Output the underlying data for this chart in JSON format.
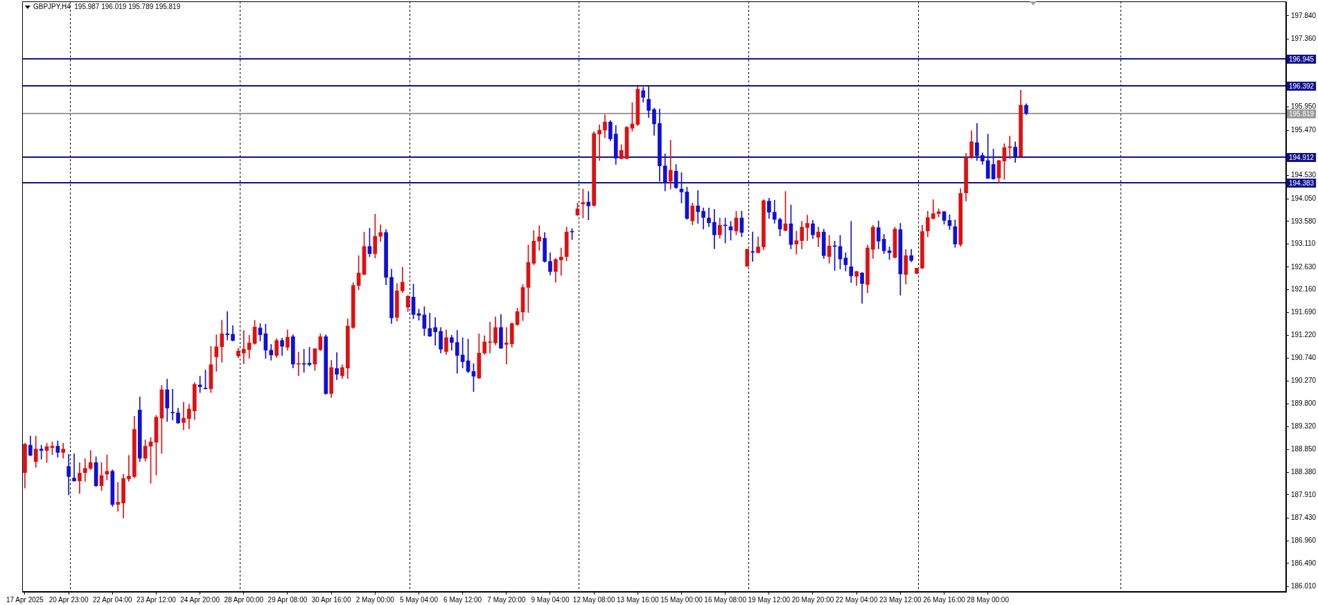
{
  "chart_data": {
    "type": "candlestick",
    "title": "GBPJPY,H4  195.987 196.019 195.789 195.819",
    "ylim": [
      185.9,
      198.14
    ],
    "yticks": [
      {
        "value": 197.84,
        "label": "197.840"
      },
      {
        "value": 197.36,
        "label": "197.360"
      },
      {
        "value": 195.95,
        "label": "195.950"
      },
      {
        "value": 195.47,
        "label": "195.470"
      },
      {
        "value": 194.53,
        "label": "194.530"
      },
      {
        "value": 194.05,
        "label": "194.050"
      },
      {
        "value": 193.58,
        "label": "193.580"
      },
      {
        "value": 193.11,
        "label": "193.110"
      },
      {
        "value": 192.63,
        "label": "192.630"
      },
      {
        "value": 192.16,
        "label": "192.160"
      },
      {
        "value": 191.69,
        "label": "191.690"
      },
      {
        "value": 191.22,
        "label": "191.220"
      },
      {
        "value": 190.74,
        "label": "190.740"
      },
      {
        "value": 190.27,
        "label": "190.270"
      },
      {
        "value": 189.8,
        "label": "189.800"
      },
      {
        "value": 189.32,
        "label": "189.320"
      },
      {
        "value": 188.85,
        "label": "188.850"
      },
      {
        "value": 188.38,
        "label": "188.380"
      },
      {
        "value": 187.91,
        "label": "187.910"
      },
      {
        "value": 187.43,
        "label": "187.430"
      },
      {
        "value": 186.96,
        "label": "186.960"
      },
      {
        "value": 186.49,
        "label": "186.490"
      },
      {
        "value": 186.01,
        "label": "186.010"
      }
    ],
    "categories": [
      "17 Apr 2025",
      null,
      null,
      null,
      null,
      null,
      null,
      null,
      "20 Apr 23:00",
      null,
      null,
      null,
      null,
      null,
      null,
      null,
      "22 Apr 04:00",
      null,
      null,
      null,
      null,
      null,
      null,
      null,
      "23 Apr 12:00",
      null,
      null,
      null,
      null,
      null,
      null,
      null,
      "24 Apr 20:00",
      null,
      null,
      null,
      null,
      null,
      null,
      null,
      "28 Apr 00:00",
      null,
      null,
      null,
      null,
      null,
      null,
      null,
      "29 Apr 08:00",
      null,
      null,
      null,
      null,
      null,
      null,
      null,
      "30 Apr 16:00",
      null,
      null,
      null,
      null,
      null,
      null,
      null,
      "2 May 00:00",
      null,
      null,
      null,
      null,
      null,
      null,
      null,
      "5 May 04:00",
      null,
      null,
      null,
      null,
      null,
      null,
      null,
      "6 May 12:00",
      null,
      null,
      null,
      null,
      null,
      null,
      null,
      "7 May 20:00",
      null,
      null,
      null,
      null,
      null,
      null,
      null,
      "9 May 04:00",
      null,
      null,
      null,
      null,
      null,
      null,
      null,
      "12 May 08:00",
      null,
      null,
      null,
      null,
      null,
      null,
      null,
      "13 May 16:00",
      null,
      null,
      null,
      null,
      null,
      null,
      null,
      "15 May 00:00",
      null,
      null,
      null,
      null,
      null,
      null,
      null,
      "16 May 08:00",
      null,
      null,
      null,
      null,
      null,
      null,
      null,
      "19 May 12:00",
      null,
      null,
      null,
      null,
      null,
      null,
      null,
      "20 May 20:00",
      null,
      null,
      null,
      null,
      null,
      null,
      null,
      "22 May 04:00",
      null,
      null,
      null,
      null,
      null,
      null,
      null,
      "23 May 12:00",
      null,
      null,
      null,
      null,
      null,
      null,
      null,
      "26 May 16:00",
      null,
      null,
      null,
      null,
      null,
      null,
      null,
      "28 May 00:00",
      null,
      null,
      null,
      null,
      null,
      null,
      null,
      null,
      null,
      null,
      null,
      null,
      null,
      null,
      null,
      null,
      null,
      null,
      null,
      null,
      null,
      null,
      null,
      null,
      null,
      null,
      null,
      null,
      null,
      null,
      null,
      null,
      null,
      null,
      null,
      null,
      null,
      null,
      null,
      null,
      null,
      null,
      null,
      null,
      null,
      null,
      null,
      null,
      null,
      null,
      null,
      null,
      null,
      null
    ],
    "ohlc": [
      [
        188.37,
        188.98,
        188.05,
        188.96
      ],
      [
        188.94,
        189.13,
        188.72,
        188.73
      ],
      [
        188.6,
        189.13,
        188.48,
        188.86
      ],
      [
        188.86,
        188.94,
        188.65,
        188.83
      ],
      [
        188.83,
        188.98,
        188.58,
        188.91
      ],
      [
        188.89,
        189.01,
        188.74,
        188.92
      ],
      [
        188.92,
        189.03,
        188.69,
        188.79
      ],
      [
        188.79,
        188.98,
        188.67,
        188.86
      ],
      [
        188.5,
        188.75,
        187.91,
        188.29
      ],
      [
        188.26,
        188.76,
        188.19,
        188.2
      ],
      [
        188.2,
        188.58,
        187.94,
        188.36
      ],
      [
        188.37,
        188.66,
        188.19,
        188.46
      ],
      [
        188.46,
        188.83,
        188.43,
        188.58
      ],
      [
        188.58,
        188.7,
        188.08,
        188.1
      ],
      [
        188.1,
        188.58,
        188.0,
        188.31
      ],
      [
        188.34,
        188.74,
        188.22,
        188.4
      ],
      [
        188.4,
        188.43,
        187.67,
        187.71
      ],
      [
        187.71,
        188.17,
        187.57,
        187.76
      ],
      [
        187.74,
        188.34,
        187.43,
        188.25
      ],
      [
        188.24,
        188.73,
        188.19,
        188.3
      ],
      [
        188.29,
        189.54,
        188.26,
        189.27
      ],
      [
        189.67,
        189.94,
        188.6,
        188.67
      ],
      [
        188.67,
        189.05,
        188.61,
        188.92
      ],
      [
        188.92,
        189.1,
        188.15,
        189.01
      ],
      [
        189.0,
        189.56,
        188.32,
        189.52
      ],
      [
        189.5,
        190.18,
        188.77,
        190.09
      ],
      [
        190.09,
        190.31,
        189.43,
        189.71
      ],
      [
        189.62,
        190.1,
        189.46,
        189.61
      ],
      [
        189.61,
        189.71,
        189.39,
        189.4
      ],
      [
        189.41,
        189.83,
        189.26,
        189.5
      ],
      [
        189.49,
        189.79,
        189.28,
        189.69
      ],
      [
        189.65,
        190.24,
        189.47,
        190.2
      ],
      [
        190.19,
        190.37,
        190.03,
        190.15
      ],
      [
        190.12,
        190.5,
        190.1,
        190.11
      ],
      [
        190.11,
        190.99,
        190.03,
        190.61
      ],
      [
        190.77,
        191.23,
        190.47,
        190.98
      ],
      [
        190.98,
        191.53,
        190.66,
        191.25
      ],
      [
        191.25,
        191.71,
        191.12,
        191.23
      ],
      [
        191.24,
        191.42,
        191.1,
        191.11
      ],
      [
        190.79,
        190.95,
        190.75,
        190.89
      ],
      [
        190.85,
        191.32,
        190.63,
        190.93
      ],
      [
        190.92,
        191.22,
        190.74,
        191.06
      ],
      [
        191.05,
        191.53,
        191.03,
        191.39
      ],
      [
        191.37,
        191.46,
        191.1,
        191.23
      ],
      [
        191.25,
        191.45,
        190.74,
        190.91
      ],
      [
        190.91,
        191.03,
        190.7,
        190.81
      ],
      [
        190.8,
        191.15,
        190.76,
        191.11
      ],
      [
        191.11,
        191.16,
        190.8,
        190.99
      ],
      [
        190.97,
        191.33,
        190.91,
        191.18
      ],
      [
        191.19,
        191.23,
        190.54,
        190.62
      ],
      [
        190.62,
        190.87,
        190.38,
        190.63
      ],
      [
        190.63,
        190.93,
        190.45,
        190.62
      ],
      [
        190.64,
        190.97,
        190.58,
        190.61
      ],
      [
        190.62,
        190.94,
        190.49,
        190.94
      ],
      [
        190.92,
        191.25,
        190.9,
        191.19
      ],
      [
        191.19,
        191.23,
        189.99,
        190.01
      ],
      [
        190.01,
        190.7,
        189.93,
        190.55
      ],
      [
        190.53,
        190.86,
        190.3,
        190.41
      ],
      [
        190.38,
        190.61,
        190.32,
        190.55
      ],
      [
        190.54,
        191.56,
        190.32,
        191.41
      ],
      [
        191.38,
        192.31,
        191.36,
        192.25
      ],
      [
        192.25,
        192.87,
        192.16,
        192.51
      ],
      [
        192.48,
        193.36,
        192.47,
        193.06
      ],
      [
        193.06,
        193.44,
        192.85,
        192.91
      ],
      [
        192.91,
        193.73,
        192.82,
        193.27
      ],
      [
        193.27,
        193.51,
        193.16,
        193.35
      ],
      [
        193.35,
        193.41,
        192.26,
        192.42
      ],
      [
        192.42,
        192.59,
        191.46,
        191.58
      ],
      [
        191.59,
        192.29,
        191.51,
        192.14
      ],
      [
        192.14,
        192.63,
        192.1,
        192.32
      ],
      [
        191.8,
        192.04,
        191.71,
        192.03
      ],
      [
        192.01,
        192.28,
        191.56,
        191.65
      ],
      [
        191.67,
        191.76,
        191.53,
        191.63
      ],
      [
        191.64,
        191.81,
        191.21,
        191.36
      ],
      [
        191.36,
        191.68,
        191.19,
        191.2
      ],
      [
        191.38,
        191.59,
        191.01,
        191.29
      ],
      [
        191.3,
        191.38,
        190.85,
        190.93
      ],
      [
        190.88,
        191.33,
        190.82,
        191.17
      ],
      [
        191.17,
        191.22,
        190.91,
        191.07
      ],
      [
        191.07,
        191.32,
        190.43,
        190.8
      ],
      [
        190.81,
        191.17,
        190.54,
        190.67
      ],
      [
        190.69,
        191.14,
        190.44,
        190.47
      ],
      [
        190.47,
        190.63,
        190.05,
        190.37
      ],
      [
        190.33,
        191.25,
        190.32,
        190.85
      ],
      [
        190.85,
        191.21,
        190.82,
        191.08
      ],
      [
        191.07,
        191.49,
        190.85,
        191.08
      ],
      [
        191.06,
        191.6,
        191.02,
        191.38
      ],
      [
        191.38,
        191.65,
        190.95,
        190.95
      ],
      [
        191.03,
        191.38,
        190.62,
        191.06
      ],
      [
        191.04,
        191.48,
        190.97,
        191.46
      ],
      [
        191.44,
        191.78,
        191.42,
        191.71
      ],
      [
        191.7,
        192.27,
        191.52,
        192.21
      ],
      [
        192.21,
        193.09,
        191.69,
        192.73
      ],
      [
        192.71,
        193.39,
        192.68,
        193.17
      ],
      [
        193.17,
        193.49,
        192.98,
        193.26
      ],
      [
        193.23,
        193.35,
        192.73,
        192.75
      ],
      [
        192.75,
        192.93,
        192.47,
        192.54
      ],
      [
        192.54,
        192.81,
        192.32,
        192.79
      ],
      [
        192.78,
        193.03,
        192.46,
        192.84
      ],
      [
        192.85,
        193.46,
        192.76,
        193.36
      ],
      [
        193.37,
        193.43,
        193.2,
        193.36
      ],
      [
        193.71,
        193.96,
        193.7,
        193.84
      ],
      [
        193.94,
        194.25,
        193.65,
        193.97
      ],
      [
        193.98,
        194.2,
        193.61,
        193.9
      ],
      [
        193.91,
        195.44,
        193.89,
        195.4
      ],
      [
        195.39,
        195.58,
        194.84,
        195.47
      ],
      [
        195.47,
        195.79,
        195.31,
        195.64
      ],
      [
        195.64,
        195.67,
        195.25,
        195.29
      ],
      [
        195.39,
        195.57,
        194.76,
        194.89
      ],
      [
        194.88,
        195.17,
        194.87,
        195.05
      ],
      [
        194.88,
        195.55,
        194.88,
        195.53
      ],
      [
        195.51,
        196.04,
        195.45,
        195.6
      ],
      [
        195.59,
        196.37,
        195.56,
        196.32
      ],
      [
        196.29,
        196.36,
        196.05,
        196.15
      ],
      [
        196.11,
        196.39,
        195.73,
        195.88
      ],
      [
        195.9,
        195.93,
        195.36,
        195.6
      ],
      [
        195.61,
        195.91,
        194.41,
        194.73
      ],
      [
        194.73,
        194.98,
        194.21,
        194.39
      ],
      [
        194.41,
        195.26,
        194.25,
        194.64
      ],
      [
        194.62,
        194.76,
        194.26,
        194.28
      ],
      [
        194.25,
        194.59,
        193.96,
        194.19
      ],
      [
        194.19,
        194.29,
        193.62,
        193.64
      ],
      [
        193.59,
        193.96,
        193.51,
        193.9
      ],
      [
        193.9,
        194.22,
        193.54,
        193.78
      ],
      [
        193.79,
        193.86,
        193.42,
        193.66
      ],
      [
        193.65,
        193.86,
        193.47,
        193.55
      ],
      [
        193.56,
        193.83,
        193.01,
        193.3
      ],
      [
        193.3,
        193.65,
        193.23,
        193.5
      ],
      [
        193.5,
        193.65,
        193.13,
        193.49
      ],
      [
        193.47,
        193.58,
        193.19,
        193.4
      ],
      [
        193.38,
        193.79,
        193.3,
        193.65
      ],
      [
        193.65,
        193.79,
        193.26,
        193.35
      ],
      [
        192.65,
        193.01,
        192.64,
        193.0
      ],
      [
        192.95,
        193.36,
        192.75,
        192.94
      ],
      [
        192.93,
        193.26,
        192.92,
        193.05
      ],
      [
        193.05,
        194.03,
        192.99,
        194.01
      ],
      [
        194.0,
        194.06,
        193.64,
        193.77
      ],
      [
        193.77,
        194.02,
        193.54,
        193.62
      ],
      [
        193.62,
        193.65,
        193.28,
        193.42
      ],
      [
        193.39,
        194.2,
        193.38,
        193.53
      ],
      [
        193.53,
        193.92,
        193.01,
        193.1
      ],
      [
        193.11,
        193.38,
        192.9,
        193.18
      ],
      [
        193.18,
        193.58,
        193.01,
        193.46
      ],
      [
        193.45,
        193.71,
        193.18,
        193.54
      ],
      [
        193.53,
        193.6,
        193.22,
        193.3
      ],
      [
        193.25,
        193.46,
        193.05,
        193.36
      ],
      [
        193.36,
        193.42,
        192.81,
        192.87
      ],
      [
        192.85,
        193.29,
        192.71,
        193.07
      ],
      [
        193.07,
        193.17,
        192.56,
        193.06
      ],
      [
        193.06,
        193.29,
        192.59,
        192.8
      ],
      [
        192.82,
        192.93,
        192.55,
        192.68
      ],
      [
        192.64,
        193.58,
        192.31,
        192.45
      ],
      [
        192.44,
        192.55,
        192.25,
        192.54
      ],
      [
        192.51,
        192.52,
        191.88,
        192.29
      ],
      [
        192.27,
        193.09,
        192.1,
        193.03
      ],
      [
        193.0,
        193.5,
        192.81,
        193.46
      ],
      [
        193.45,
        193.59,
        193.01,
        193.17
      ],
      [
        193.21,
        193.31,
        192.91,
        192.97
      ],
      [
        192.97,
        193.05,
        192.79,
        192.93
      ],
      [
        192.83,
        193.46,
        192.82,
        193.42
      ],
      [
        193.41,
        193.54,
        192.05,
        192.49
      ],
      [
        192.48,
        193.0,
        192.28,
        192.87
      ],
      [
        192.87,
        193.0,
        192.74,
        192.77
      ],
      [
        192.5,
        192.61,
        192.49,
        192.61
      ],
      [
        192.61,
        193.5,
        192.6,
        193.37
      ],
      [
        193.38,
        193.79,
        193.26,
        193.66
      ],
      [
        193.64,
        194.03,
        193.62,
        193.74
      ],
      [
        193.74,
        193.84,
        193.67,
        193.78
      ],
      [
        193.78,
        193.79,
        193.52,
        193.6
      ],
      [
        193.6,
        193.72,
        193.41,
        193.49
      ],
      [
        193.47,
        193.61,
        193.04,
        193.11
      ],
      [
        193.1,
        194.26,
        193.06,
        194.16
      ],
      [
        194.17,
        194.99,
        194.0,
        194.9
      ],
      [
        194.92,
        195.46,
        194.88,
        195.23
      ],
      [
        195.21,
        195.61,
        194.84,
        194.94
      ],
      [
        194.95,
        195.0,
        194.76,
        194.83
      ],
      [
        194.84,
        195.39,
        194.47,
        194.47
      ],
      [
        194.76,
        195.08,
        194.45,
        194.46
      ],
      [
        194.48,
        194.85,
        194.37,
        194.84
      ],
      [
        194.83,
        195.19,
        194.45,
        195.11
      ],
      [
        195.11,
        195.35,
        194.88,
        195.13
      ],
      [
        195.12,
        195.23,
        194.8,
        194.92
      ],
      [
        194.93,
        196.3,
        194.92,
        195.99
      ],
      [
        195.987,
        196.019,
        195.789,
        195.819
      ],
      null,
      null,
      null,
      null,
      null,
      null,
      null,
      null,
      null,
      null,
      null,
      null,
      null,
      null,
      null,
      null,
      null,
      null,
      null,
      null,
      null,
      null,
      null,
      null,
      null,
      null,
      null,
      null,
      null,
      null,
      null,
      null,
      null,
      null,
      null,
      null,
      null,
      null,
      null,
      null,
      null,
      null,
      null,
      null,
      null,
      null,
      null
    ],
    "colors": [
      "#e01010",
      "#1010d8",
      "#e01010",
      "#1010d8",
      "#e01010",
      "#e01010",
      "#1010d8",
      "#e01010",
      "#1010d8",
      "#1010d8",
      "#e01010",
      "#e01010",
      "#e01010",
      "#1010d8",
      "#e01010",
      "#e01010",
      "#1010d8",
      "#e01010",
      "#e01010",
      "#e01010",
      "#e01010",
      "#1010d8",
      "#e01010",
      "#e01010",
      "#e01010",
      "#e01010",
      "#1010d8",
      "#1010d8",
      "#1010d8",
      "#e01010",
      "#e01010",
      "#e01010",
      "#1010d8",
      "#1010d8",
      "#e01010",
      "#e01010",
      "#e01010",
      "#1010d8",
      "#1010d8",
      "#e01010",
      "#e01010",
      "#e01010",
      "#e01010",
      "#1010d8",
      "#1010d8",
      "#1010d8",
      "#e01010",
      "#1010d8",
      "#e01010",
      "#1010d8",
      "#e01010",
      "#1010d8",
      "#1010d8",
      "#e01010",
      "#e01010",
      "#1010d8",
      "#e01010",
      "#1010d8",
      "#e01010",
      "#e01010",
      "#e01010",
      "#e01010",
      "#e01010",
      "#1010d8",
      "#e01010",
      "#e01010",
      "#1010d8",
      "#1010d8",
      "#e01010",
      "#e01010",
      "#e01010",
      "#1010d8",
      "#1010d8",
      "#1010d8",
      "#1010d8",
      "#1010d8",
      "#1010d8",
      "#e01010",
      "#1010d8",
      "#1010d8",
      "#1010d8",
      "#1010d8",
      "#1010d8",
      "#e01010",
      "#e01010",
      "#e01010",
      "#e01010",
      "#1010d8",
      "#e01010",
      "#e01010",
      "#e01010",
      "#e01010",
      "#e01010",
      "#e01010",
      "#e01010",
      "#1010d8",
      "#1010d8",
      "#e01010",
      "#e01010",
      "#e01010",
      "#1010d8",
      "#e01010",
      "#e01010",
      "#1010d8",
      "#e01010",
      "#e01010",
      "#e01010",
      "#1010d8",
      "#1010d8",
      "#e01010",
      "#e01010",
      "#e01010",
      "#e01010",
      "#1010d8",
      "#1010d8",
      "#1010d8",
      "#1010d8",
      "#1010d8",
      "#e01010",
      "#1010d8",
      "#1010d8",
      "#1010d8",
      "#e01010",
      "#1010d8",
      "#1010d8",
      "#1010d8",
      "#1010d8",
      "#e01010",
      "#1010d8",
      "#1010d8",
      "#e01010",
      "#1010d8",
      "#e01010",
      "#1010d8",
      "#e01010",
      "#e01010",
      "#1010d8",
      "#1010d8",
      "#1010d8",
      "#e01010",
      "#1010d8",
      "#e01010",
      "#e01010",
      "#e01010",
      "#1010d8",
      "#e01010",
      "#1010d8",
      "#e01010",
      "#1010d8",
      "#1010d8",
      "#1010d8",
      "#1010d8",
      "#e01010",
      "#1010d8",
      "#e01010",
      "#e01010",
      "#1010d8",
      "#1010d8",
      "#1010d8",
      "#e01010",
      "#1010d8",
      "#e01010",
      "#1010d8",
      "#e01010",
      "#e01010",
      "#e01010",
      "#e01010",
      "#e01010",
      "#1010d8",
      "#1010d8",
      "#1010d8",
      "#e01010",
      "#e01010",
      "#e01010",
      "#1010d8",
      "#1010d8",
      "#1010d8",
      "#1010d8",
      "#e01010",
      "#e01010",
      "#e01010",
      "#1010d8",
      "#e01010",
      "#1010d8",
      null,
      null,
      null,
      null,
      null,
      null,
      null,
      null,
      null,
      null,
      null,
      null,
      null,
      null,
      null,
      null,
      null,
      null,
      null,
      null,
      null,
      null,
      null,
      null,
      null,
      null,
      null,
      null,
      null,
      null,
      null,
      null,
      null,
      null,
      null,
      null,
      null,
      null,
      null,
      null,
      null,
      null,
      null,
      null,
      null,
      null,
      null
    ],
    "ref_lines": [
      {
        "axis": "y",
        "value": 196.945,
        "label": "196.945",
        "color": "#10108c",
        "line_style": "solid"
      },
      {
        "axis": "y",
        "value": 196.392,
        "label": "196.392",
        "color": "#10108c",
        "line_style": "solid"
      },
      {
        "axis": "y",
        "value": 195.819,
        "label": "195.819",
        "color": "#9a9a9a",
        "line_style": "solid"
      },
      {
        "axis": "y",
        "value": 194.912,
        "label": "194.912",
        "color": "#10108c",
        "line_style": "solid"
      },
      {
        "axis": "y",
        "value": 194.383,
        "label": "194.383",
        "color": "#10108c",
        "line_style": "solid"
      }
    ]
  }
}
